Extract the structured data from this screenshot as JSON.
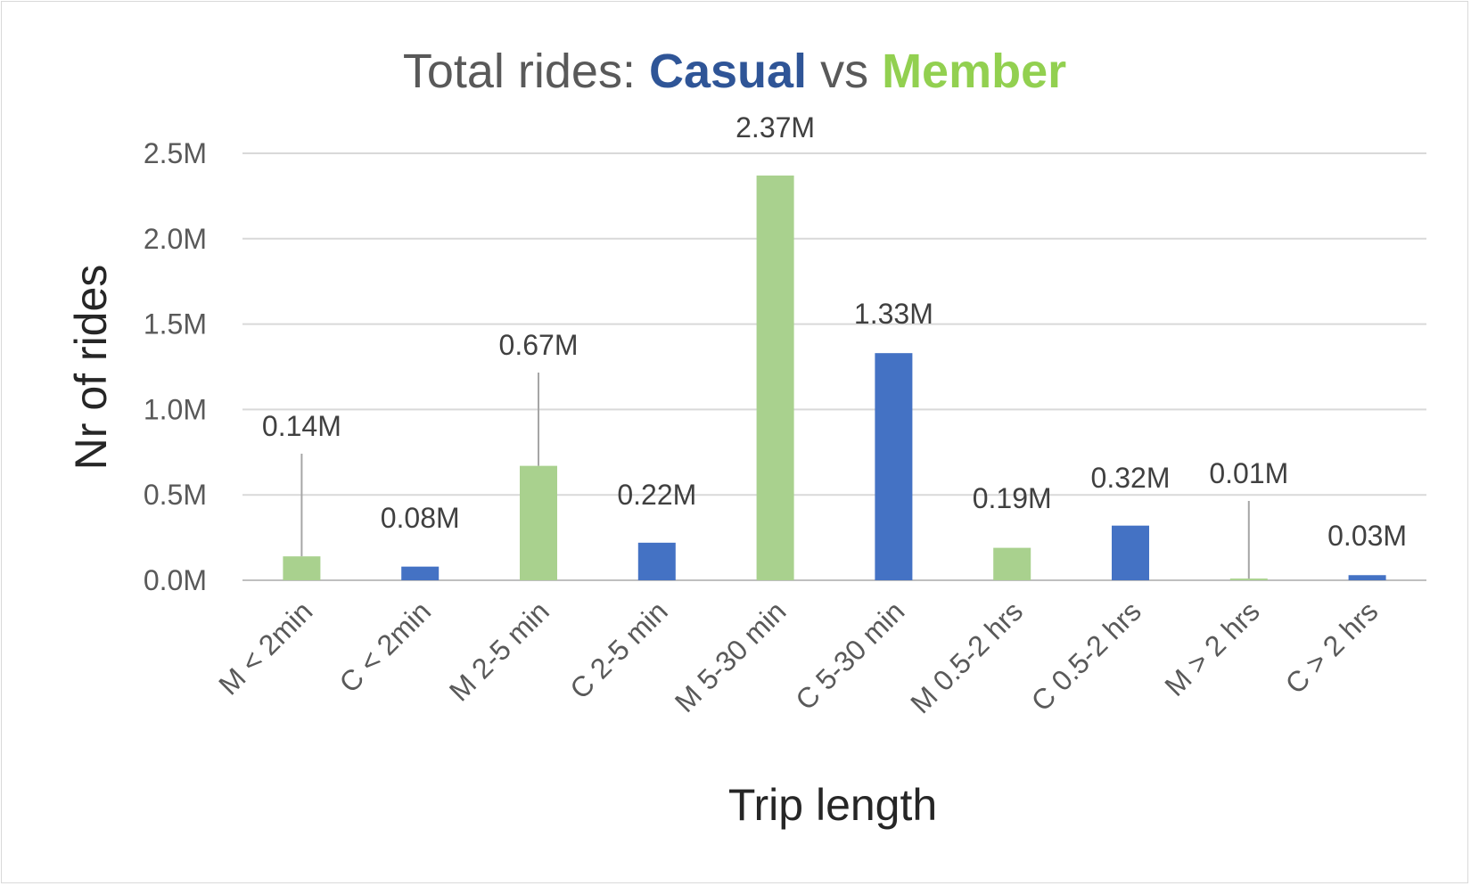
{
  "chart_data": {
    "type": "bar",
    "title": {
      "prefix": "Total rides: ",
      "casual_word": "Casual",
      "middle": " vs ",
      "member_word": "Member"
    },
    "xlabel": "Trip length",
    "ylabel": "Nr of rides",
    "ylim": [
      0,
      2.5
    ],
    "yticks": [
      "0.0M",
      "0.5M",
      "1.0M",
      "1.5M",
      "2.0M",
      "2.5M"
    ],
    "grid": true,
    "legend": "none",
    "categories": [
      "M < 2min",
      "C < 2min",
      "M 2-5 min",
      "C 2-5 min",
      "M 5-30 min",
      "C 5-30 min",
      "M 0.5-2 hrs",
      "C 0.5-2 hrs",
      "M > 2 hrs",
      "C > 2 hrs"
    ],
    "values": [
      0.14,
      0.08,
      0.67,
      0.22,
      2.37,
      1.33,
      0.19,
      0.32,
      0.01,
      0.03
    ],
    "data_labels": [
      "0.14M",
      "0.08M",
      "0.67M",
      "0.22M",
      "2.37M",
      "1.33M",
      "0.19M",
      "0.32M",
      "0.01M",
      "0.03M"
    ],
    "rider_type": [
      "Member",
      "Casual",
      "Member",
      "Casual",
      "Member",
      "Casual",
      "Member",
      "Casual",
      "Member",
      "Casual"
    ],
    "unit": "M (millions of rides)"
  },
  "colors": {
    "member": "#a9d18e",
    "casual": "#4472c4",
    "title_gray": "#595959",
    "casual_title": "#2f5597",
    "member_title": "#92d050",
    "gridline": "#d9d9d9",
    "leader": "#a6a6a6"
  }
}
